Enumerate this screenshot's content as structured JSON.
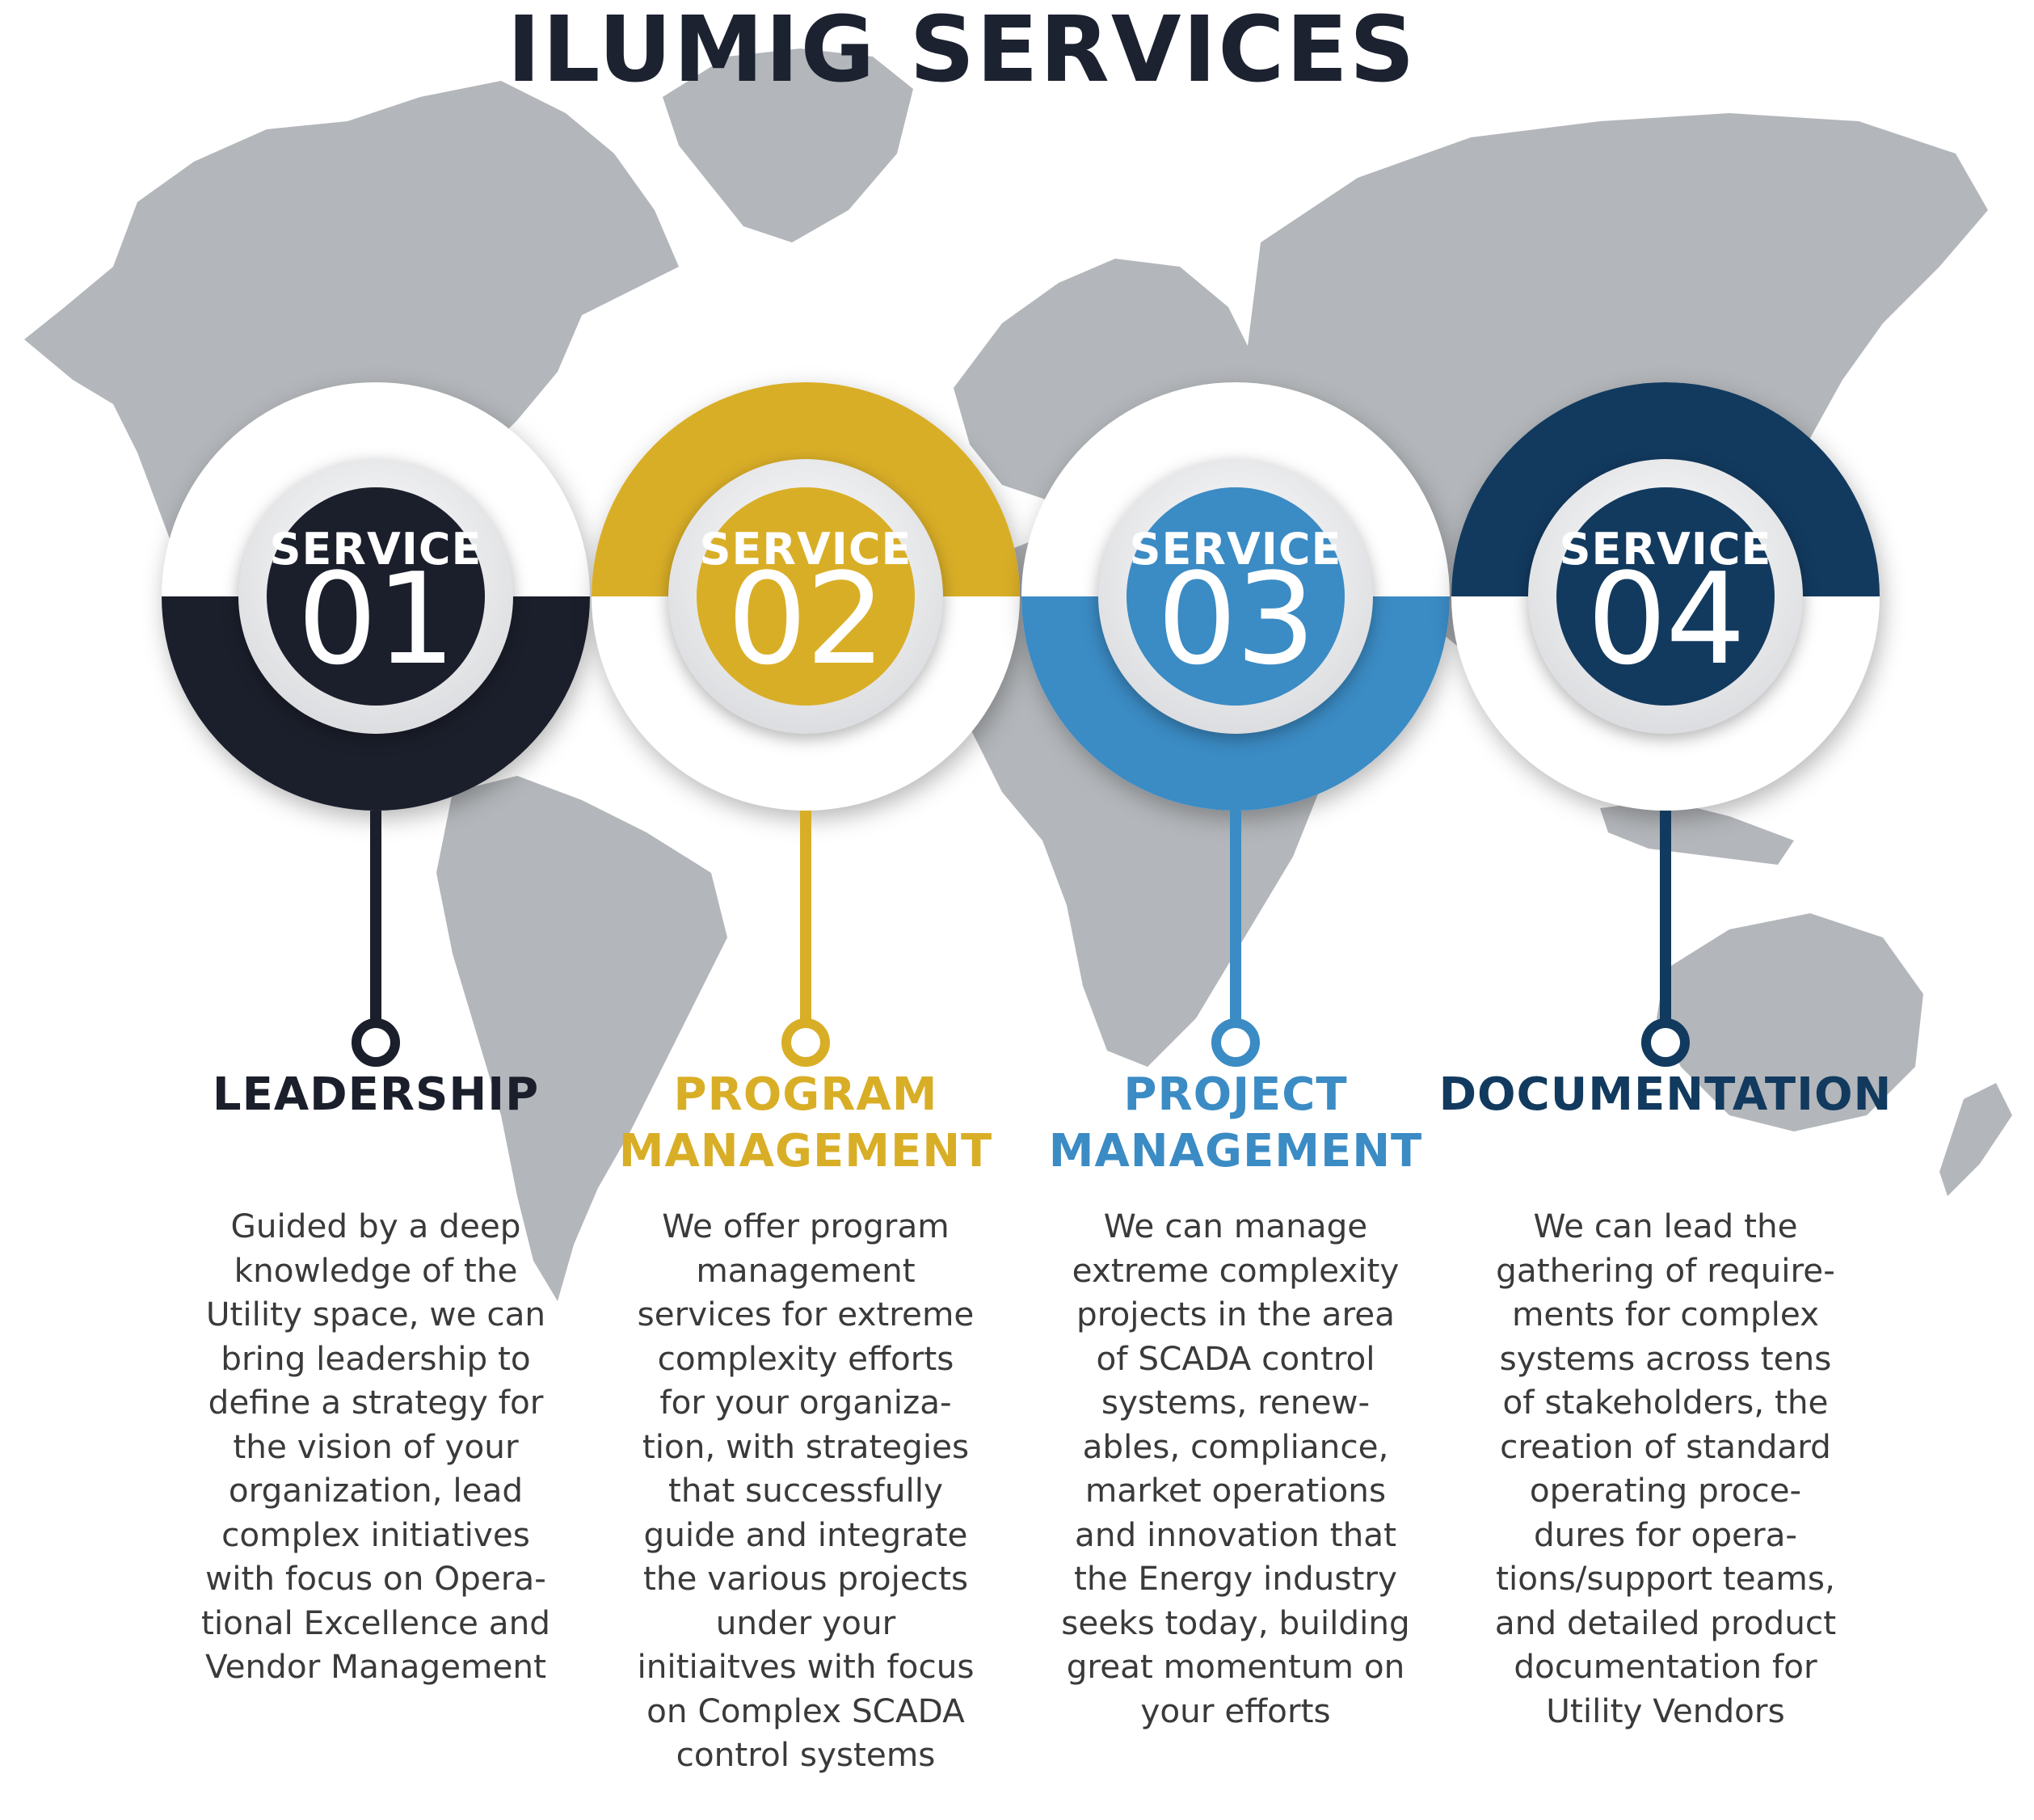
{
  "page_title": "ILUMIG SERVICES",
  "services": [
    {
      "kicker": "SERVICE",
      "number": "01",
      "heading": "LEADERSHIP",
      "color": "#1b1f2b",
      "description": "Guided by a deep\nknowledge of the\nUtility space, we can\nbring leadership to\ndefine a strategy for\nthe vision of your\norganization, lead\ncomplex initiatives\nwith focus on Opera-\ntional Excellence and\nVendor Management"
    },
    {
      "kicker": "SERVICE",
      "number": "02",
      "heading": "PROGRAM\nMANAGEMENT",
      "color": "#d9ae27",
      "description": "We offer program\nmanagement\nservices for extreme\ncomplexity efforts\nfor your organiza-\ntion, with strategies\nthat successfully\nguide and integrate\nthe various projects\nunder your\ninitiaitves with focus\non Complex SCADA\ncontrol systems"
    },
    {
      "kicker": "SERVICE",
      "number": "03",
      "heading": "PROJECT\nMANAGEMENT",
      "color": "#3b8bc4",
      "description": "We can manage\nextreme complexity\nprojects in the area\nof SCADA control\nsystems, renew-\nables, compliance,\nmarket operations\nand innovation that\nthe Energy industry\nseeks today, building\ngreat momentum on\nyour efforts"
    },
    {
      "kicker": "SERVICE",
      "number": "04",
      "heading": "DOCUMENTATION",
      "color": "#123a5f",
      "description": "We can lead the\ngathering of require-\nments for complex\nsystems across tens\nof stakeholders, the\ncreation of standard\noperating proce-\ndures for opera-\ntions/support teams,\nand detailed product\ndocumentation for\nUtility Vendors"
    }
  ],
  "colors": {
    "map": "#b3b6ba",
    "title": "#1c2230",
    "body_text": "#3a3a3a"
  }
}
